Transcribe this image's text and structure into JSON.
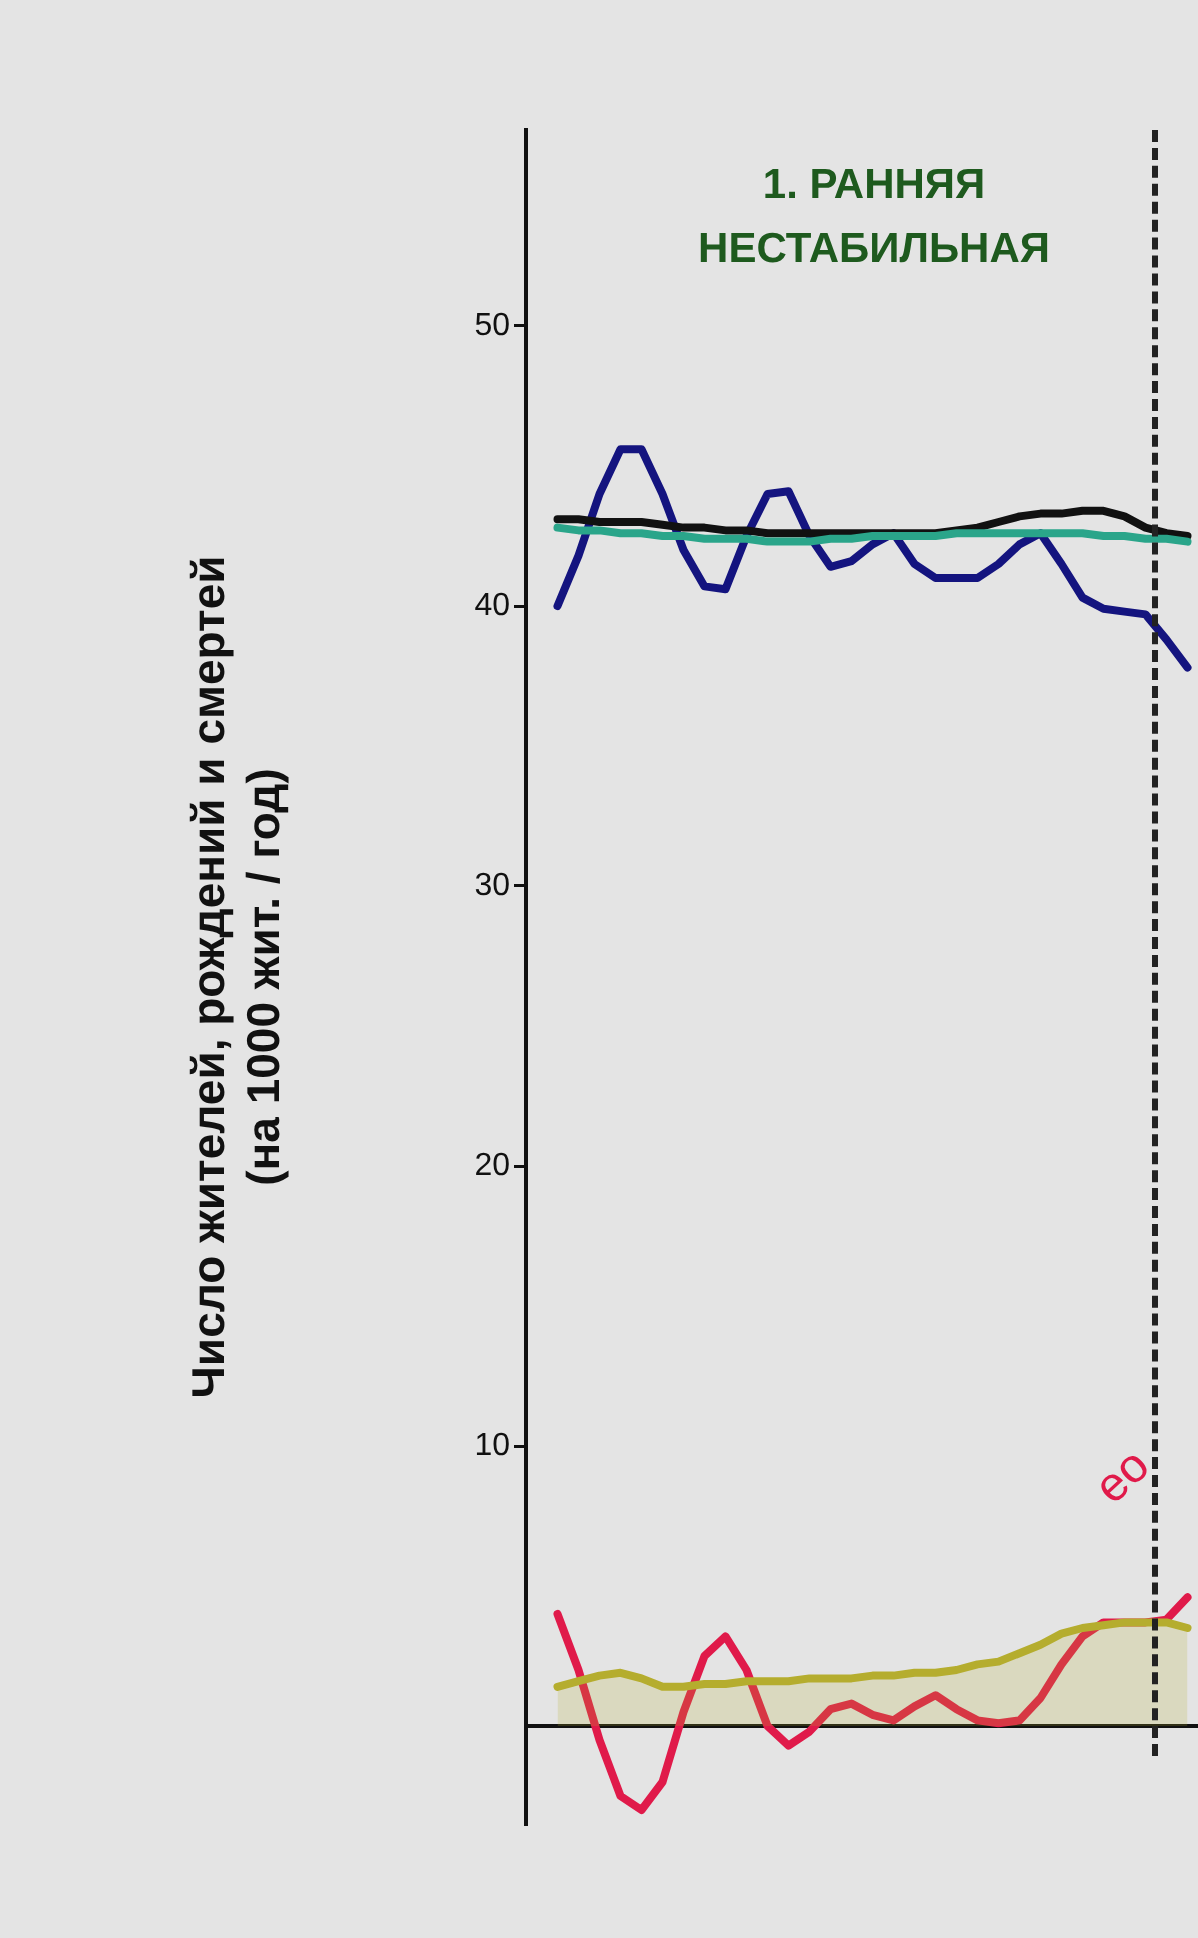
{
  "chart_data": {
    "type": "line",
    "ylabel": "Число жителей, рождений и смертей\n(на 1000 жит. / год)",
    "annotations": [
      "1. РАННЯЯ\nНЕСТАБИЛЬНАЯ",
      "ео"
    ],
    "categories": [
      null,
      null,
      null,
      null,
      null,
      null,
      null,
      null,
      null,
      null,
      null,
      null,
      null,
      null,
      null,
      null,
      null,
      null,
      null,
      null,
      null,
      null,
      null,
      null,
      null,
      null,
      null,
      null,
      null,
      null,
      null,
      null
    ],
    "ylim": [
      -3.5,
      57
    ],
    "yticks": [
      10,
      20,
      30,
      40,
      50
    ],
    "tick_labels": "y",
    "grid": false,
    "legend": false,
    "marker": "none",
    "series": [
      {
        "type": "area",
        "color": "#b5ad2e",
        "values": [
          null,
          1.4,
          1.6,
          1.8,
          1.9,
          1.7,
          1.4,
          1.4,
          1.5,
          1.5,
          1.6,
          1.6,
          1.6,
          1.7,
          1.7,
          1.7,
          1.8,
          1.8,
          1.9,
          1.9,
          2.0,
          2.2,
          2.3,
          2.6,
          2.9,
          3.3,
          3.5,
          3.6,
          3.7,
          3.7,
          3.7,
          3.5
        ]
      },
      {
        "color": "#2aa58a",
        "values": [
          null,
          42.8,
          42.7,
          42.7,
          42.6,
          42.6,
          42.5,
          42.5,
          42.4,
          42.4,
          42.4,
          42.3,
          42.3,
          42.3,
          42.4,
          42.4,
          42.5,
          42.5,
          42.5,
          42.5,
          42.6,
          42.6,
          42.6,
          42.6,
          42.6,
          42.6,
          42.6,
          42.5,
          42.5,
          42.4,
          42.4,
          42.3
        ]
      },
      {
        "color": "#111111",
        "values": [
          null,
          43.1,
          43.1,
          43.0,
          43.0,
          43.0,
          42.9,
          42.8,
          42.8,
          42.7,
          42.7,
          42.6,
          42.6,
          42.6,
          42.6,
          42.6,
          42.6,
          42.6,
          42.6,
          42.6,
          42.7,
          42.8,
          43.0,
          43.2,
          43.3,
          43.3,
          43.4,
          43.4,
          43.2,
          42.8,
          42.6,
          42.5
        ]
      },
      {
        "color": "#14147f",
        "values": [
          null,
          40.0,
          41.8,
          44.0,
          45.6,
          45.6,
          44.0,
          42.0,
          40.7,
          40.6,
          42.5,
          44.0,
          44.1,
          42.5,
          41.4,
          41.6,
          42.2,
          42.6,
          41.5,
          41.0,
          41.0,
          41.0,
          41.5,
          42.2,
          42.6,
          41.5,
          40.3,
          39.9,
          39.8,
          39.7,
          38.8,
          37.8
        ]
      },
      {
        "color": "#e01a4a",
        "values": [
          null,
          4.0,
          2.0,
          -0.5,
          -2.5,
          -3.0,
          -2.0,
          0.5,
          2.5,
          3.2,
          2.0,
          0.0,
          -0.7,
          -0.2,
          0.6,
          0.8,
          0.4,
          0.2,
          0.7,
          1.1,
          0.6,
          0.2,
          0.1,
          0.2,
          1.0,
          2.2,
          3.2,
          3.7,
          3.7,
          3.7,
          3.8,
          4.6
        ]
      }
    ]
  }
}
